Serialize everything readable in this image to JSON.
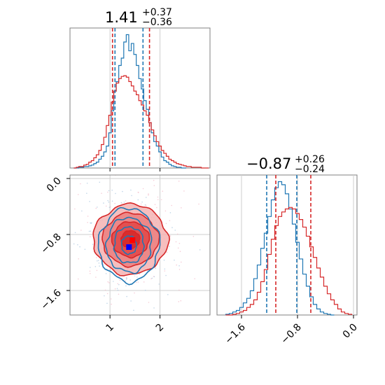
{
  "chart_data": {
    "type": "corner",
    "panels": {
      "param1_hist": {
        "type": "histogram",
        "xlim": [
          0.2,
          3.0
        ],
        "title": {
          "median": "1.41",
          "plus": "+0.37",
          "minus": "−0.36"
        },
        "blue_dashed_lines": [
          1.1,
          1.66
        ],
        "red_dashed_lines": [
          1.05,
          1.79
        ],
        "series": [
          {
            "color": "#1f77b4",
            "bins_x": [
              0.3,
              0.35,
              0.4,
              0.45,
              0.5,
              0.55,
              0.6,
              0.65,
              0.7,
              0.75,
              0.8,
              0.85,
              0.9,
              0.95,
              1.0,
              1.05,
              1.1,
              1.15,
              1.2,
              1.25,
              1.3,
              1.35,
              1.4,
              1.45,
              1.5,
              1.55,
              1.6,
              1.65,
              1.7,
              1.75,
              1.8,
              1.85,
              1.9,
              1.95,
              2.0,
              2.05,
              2.1,
              2.15,
              2.2,
              2.25,
              2.3,
              2.35,
              2.4,
              2.45,
              2.5
            ],
            "values": [
              0,
              0,
              1,
              1,
              2,
              2,
              3,
              4,
              6,
              8,
              12,
              16,
              22,
              30,
              48,
              78,
              105,
              118,
              140,
              150,
              172,
              182,
              160,
              170,
              155,
              140,
              122,
              108,
              92,
              80,
              62,
              48,
              36,
              30,
              22,
              15,
              10,
              8,
              5,
              3,
              2,
              1,
              1,
              0,
              0
            ]
          },
          {
            "color": "#d62728",
            "bins_x": [
              0.3,
              0.35,
              0.4,
              0.45,
              0.5,
              0.55,
              0.6,
              0.65,
              0.7,
              0.75,
              0.8,
              0.85,
              0.9,
              0.95,
              1.0,
              1.05,
              1.1,
              1.15,
              1.2,
              1.25,
              1.3,
              1.35,
              1.4,
              1.45,
              1.5,
              1.55,
              1.6,
              1.65,
              1.7,
              1.75,
              1.8,
              1.85,
              1.9,
              1.95,
              2.0,
              2.05,
              2.1,
              2.15,
              2.2,
              2.25,
              2.3,
              2.35,
              2.4,
              2.45,
              2.5,
              2.55,
              2.6,
              2.65,
              2.7,
              2.75,
              2.8,
              2.85,
              2.9,
              2.95
            ],
            "values": [
              0,
              1,
              2,
              2,
              4,
              5,
              8,
              10,
              14,
              18,
              24,
              32,
              42,
              58,
              72,
              90,
              105,
              116,
              122,
              125,
              126,
              124,
              118,
              112,
              105,
              100,
              92,
              86,
              78,
              72,
              62,
              52,
              44,
              36,
              30,
              24,
              20,
              16,
              12,
              10,
              8,
              6,
              5,
              4,
              3,
              2,
              2,
              1,
              1,
              1,
              1,
              0,
              0,
              0
            ]
          }
        ]
      },
      "joint_2d": {
        "type": "contour",
        "xlim": [
          0.2,
          3.0
        ],
        "ylim": [
          -1.95,
          0.05
        ],
        "xticks": [
          "1",
          "2"
        ],
        "yticks": [
          "0.0",
          "−0.8",
          "−1.6"
        ],
        "series": [
          {
            "color": "#d62728",
            "center": [
              1.41,
              -0.87
            ],
            "spread": [
              0.37,
              0.25
            ],
            "marker_color": "#ff0000",
            "marker": [
              1.45,
              -0.88
            ]
          },
          {
            "color": "#1f77b4",
            "center": [
              1.38,
              -0.95
            ],
            "spread": [
              0.3,
              0.26
            ],
            "marker_color": "#0000ff",
            "marker": [
              1.38,
              -0.98
            ]
          }
        ]
      },
      "param2_hist": {
        "type": "histogram",
        "xlim": [
          -1.95,
          0.05
        ],
        "title": {
          "median": "−0.87",
          "plus": "+0.26",
          "minus": "−0.24"
        },
        "xticks": [
          "−1.6",
          "−0.8",
          "0.0"
        ],
        "blue_dashed_lines": [
          -1.24,
          -0.81
        ],
        "red_dashed_lines": [
          -1.11,
          -0.61
        ],
        "series": [
          {
            "color": "#1f77b4",
            "bins_x": [
              -1.8,
              -1.75,
              -1.7,
              -1.65,
              -1.6,
              -1.55,
              -1.5,
              -1.45,
              -1.4,
              -1.35,
              -1.3,
              -1.25,
              -1.2,
              -1.15,
              -1.1,
              -1.05,
              -1.0,
              -0.95,
              -0.9,
              -0.85,
              -0.8,
              -0.75,
              -0.7,
              -0.65,
              -0.6,
              -0.55,
              -0.5,
              -0.45,
              -0.4,
              -0.35,
              -0.3
            ],
            "values": [
              1,
              2,
              4,
              6,
              10,
              16,
              22,
              32,
              48,
              66,
              88,
              108,
              130,
              152,
              168,
              176,
              172,
              160,
              140,
              120,
              96,
              74,
              54,
              38,
              24,
              14,
              8,
              4,
              2,
              1,
              0
            ]
          },
          {
            "color": "#d62728",
            "bins_x": [
              -1.8,
              -1.75,
              -1.7,
              -1.65,
              -1.6,
              -1.55,
              -1.5,
              -1.45,
              -1.4,
              -1.35,
              -1.3,
              -1.25,
              -1.2,
              -1.15,
              -1.1,
              -1.05,
              -1.0,
              -0.95,
              -0.9,
              -0.85,
              -0.8,
              -0.75,
              -0.7,
              -0.65,
              -0.6,
              -0.55,
              -0.5,
              -0.45,
              -0.4,
              -0.35,
              -0.3,
              -0.25,
              -0.2,
              -0.15,
              -0.1,
              -0.05
            ],
            "values": [
              0,
              0,
              1,
              2,
              4,
              6,
              10,
              14,
              20,
              30,
              44,
              60,
              80,
              100,
              118,
              130,
              136,
              140,
              142,
              140,
              134,
              126,
              116,
              104,
              90,
              76,
              62,
              50,
              38,
              28,
              20,
              14,
              8,
              4,
              2,
              1
            ]
          }
        ]
      }
    }
  }
}
